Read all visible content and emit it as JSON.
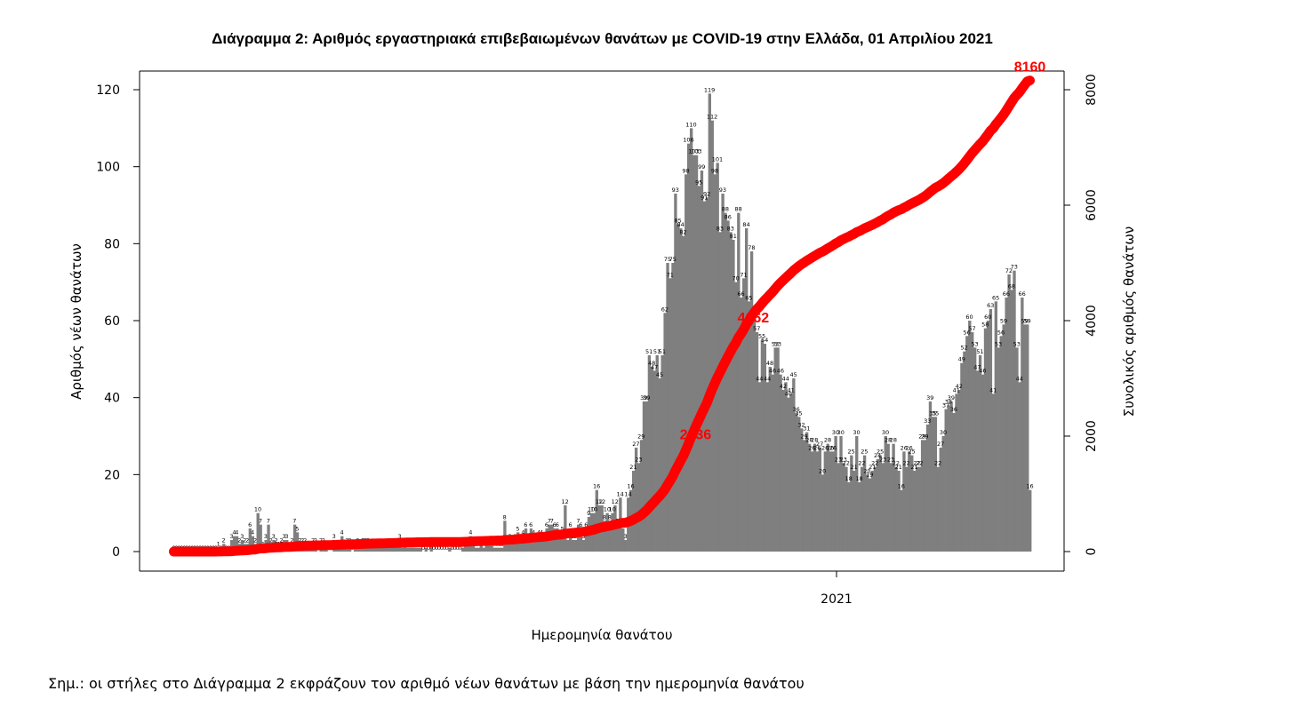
{
  "title": "Διάγραμμα 2: Αριθμός εργαστηριακά επιβεβαιωμένων θανάτων με COVID-19 στην Ελλάδα, 01 Απριλίου 2021",
  "note": "Σημ.: οι στήλες στο Διάγραμμα 2 εκφράζουν τον αριθμό νέων θανάτων με βάση την ημερομηνία θανάτου",
  "colors": {
    "bars": "#7f7f7f",
    "cumulative": "#ff0000"
  },
  "chart_data": {
    "type": "bar+line",
    "xlabel": "Ημερομηνία θανάτου",
    "x_tick_labels": [
      "2021"
    ],
    "left_axis": {
      "label": "Αριθμός νέων θανάτων",
      "ticks": [
        0,
        20,
        40,
        60,
        80,
        100,
        120
      ],
      "ylim": [
        0,
        120
      ]
    },
    "right_axis": {
      "label": "Συνολικός αριθμός θανάτων",
      "ticks": [
        0,
        2000,
        4000,
        6000,
        8000
      ],
      "ylim": [
        0,
        8000
      ]
    },
    "series": [
      {
        "name": "Αριθμός νέων θανάτων",
        "type": "bar",
        "values": [
          0,
          0,
          0,
          0,
          0,
          0,
          0,
          0,
          0,
          0,
          0,
          0,
          0,
          0,
          0,
          0,
          0,
          1,
          0,
          2,
          0,
          0,
          3,
          4,
          4,
          2,
          3,
          2,
          2,
          6,
          4,
          2,
          10,
          7,
          1,
          3,
          7,
          2,
          3,
          2,
          1,
          2,
          3,
          3,
          0,
          2,
          7,
          5,
          2,
          2,
          2,
          1,
          1,
          2,
          2,
          0,
          2,
          2,
          1,
          0,
          0,
          3,
          1,
          1,
          4,
          1,
          2,
          2,
          0,
          1,
          2,
          1,
          2,
          2,
          2,
          1,
          1,
          1,
          1,
          1,
          1,
          1,
          1,
          1,
          1,
          2,
          3,
          1,
          2,
          1,
          1,
          1,
          1,
          1,
          1,
          0,
          1,
          0,
          2,
          0,
          0,
          0,
          0,
          0,
          0,
          1,
          0,
          0,
          0,
          0,
          1,
          2,
          2,
          4,
          2,
          1,
          1,
          2,
          1,
          2,
          2,
          2,
          1,
          1,
          1,
          1,
          8,
          2,
          3,
          2,
          3,
          5,
          3,
          4,
          6,
          3,
          6,
          4,
          3,
          4,
          4,
          3,
          6,
          7,
          7,
          6,
          6,
          4,
          5,
          12,
          3,
          6,
          3,
          3,
          7,
          6,
          3,
          6,
          9,
          10,
          10,
          16,
          12,
          12,
          8,
          10,
          8,
          10,
          12,
          7,
          14,
          6,
          3,
          14,
          16,
          21,
          27,
          23,
          29,
          39,
          39,
          51,
          48,
          47,
          51,
          45,
          51,
          62,
          75,
          71,
          75,
          93,
          85,
          84,
          82,
          98,
          106,
          110,
          103,
          103,
          95,
          99,
          91,
          92,
          119,
          112,
          98,
          101,
          83,
          93,
          88,
          86,
          83,
          81,
          70,
          88,
          66,
          71,
          84,
          65,
          78,
          61,
          57,
          44,
          55,
          54,
          44,
          48,
          46,
          53,
          53,
          46,
          42,
          44,
          40,
          41,
          45,
          36,
          35,
          32,
          29,
          31,
          28,
          26,
          28,
          26,
          27,
          20,
          26,
          28,
          26,
          26,
          30,
          23,
          30,
          23,
          22,
          18,
          25,
          21,
          30,
          18,
          22,
          25,
          20,
          19,
          21,
          22,
          24,
          25,
          23,
          30,
          28,
          23,
          28,
          22,
          21,
          16,
          26,
          22,
          26,
          25,
          21,
          22,
          22,
          29,
          29,
          33,
          39,
          35,
          35,
          22,
          27,
          30,
          37,
          38,
          39,
          36,
          41,
          42,
          49,
          52,
          56,
          60,
          57,
          53,
          47,
          51,
          46,
          58,
          60,
          63,
          41,
          65,
          53,
          56,
          59,
          66,
          72,
          68,
          73,
          53,
          44,
          66,
          59,
          59,
          16
        ],
        "labels_note": "values read from bar labels; per-day labels drawn at bar tops"
      },
      {
        "name": "Συνολικός αριθμός θανάτων",
        "type": "line",
        "axis": "right",
        "annotations": [
          {
            "text": "2036",
            "value": 2036
          },
          {
            "text": "4062",
            "value": 4062
          },
          {
            "text": "8160",
            "value": 8160
          }
        ]
      }
    ],
    "legend": "none",
    "grid": false
  }
}
